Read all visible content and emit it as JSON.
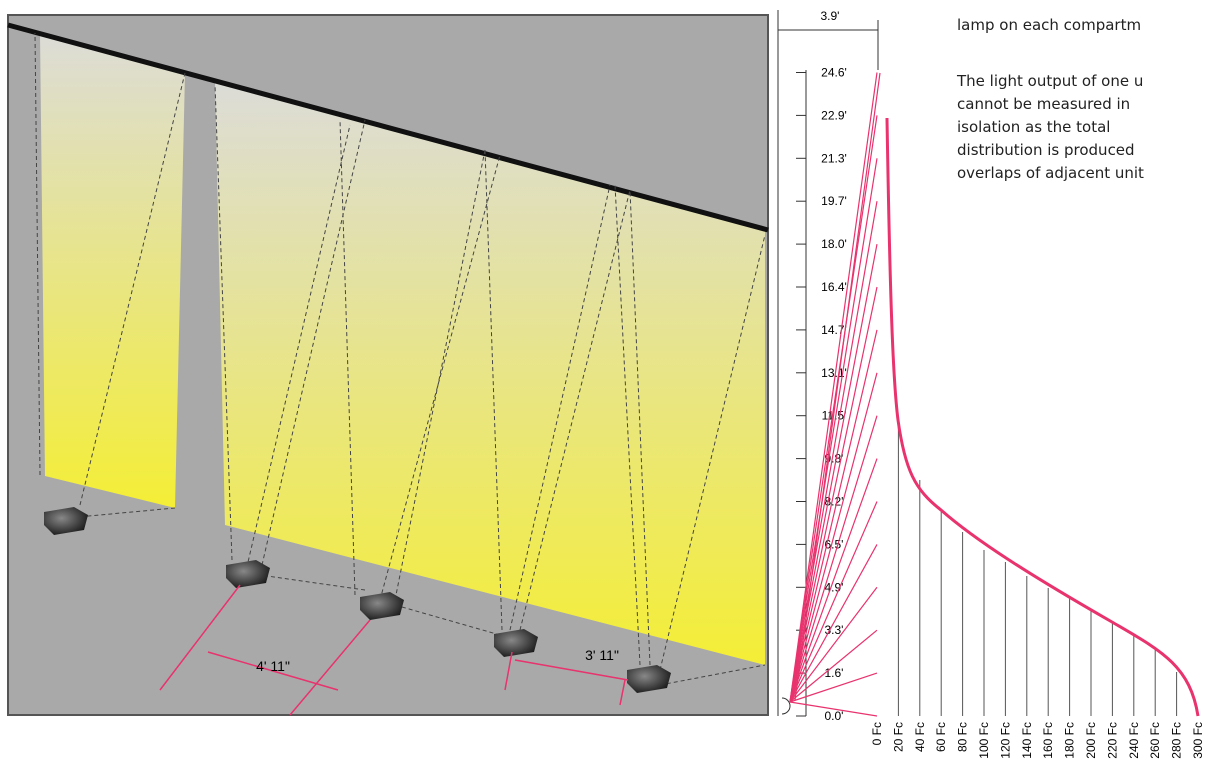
{
  "diagram": {
    "dimensions": {
      "fixture_spacing_a": "4' 11\"",
      "fixture_spacing_b": "3' 11\"",
      "offset": "3.9'"
    },
    "height_labels": [
      "0.0'",
      "1.6'",
      "3.3'",
      "4.9'",
      "6.5'",
      "8.2'",
      "9.8'",
      "11.5'",
      "13.1'",
      "14.7'",
      "16.4'",
      "18.0'",
      "19.7'",
      "21.3'",
      "22.9'",
      "24.6'"
    ],
    "illuminance_labels": [
      "0 Fc",
      "20 Fc",
      "40 Fc",
      "60 Fc",
      "80 Fc",
      "100 Fc",
      "120 Fc",
      "140 Fc",
      "160 Fc",
      "180 Fc",
      "200 Fc",
      "220 Fc",
      "240 Fc",
      "260 Fc",
      "280 Fc",
      "300 Fc"
    ],
    "text": {
      "line_top": "lamp on each compartm",
      "paragraph": [
        "The light output of one u",
        "cannot be measured in",
        "isolation as the total",
        "distribution is produced",
        "overlaps of adjacent unit"
      ]
    }
  }
}
